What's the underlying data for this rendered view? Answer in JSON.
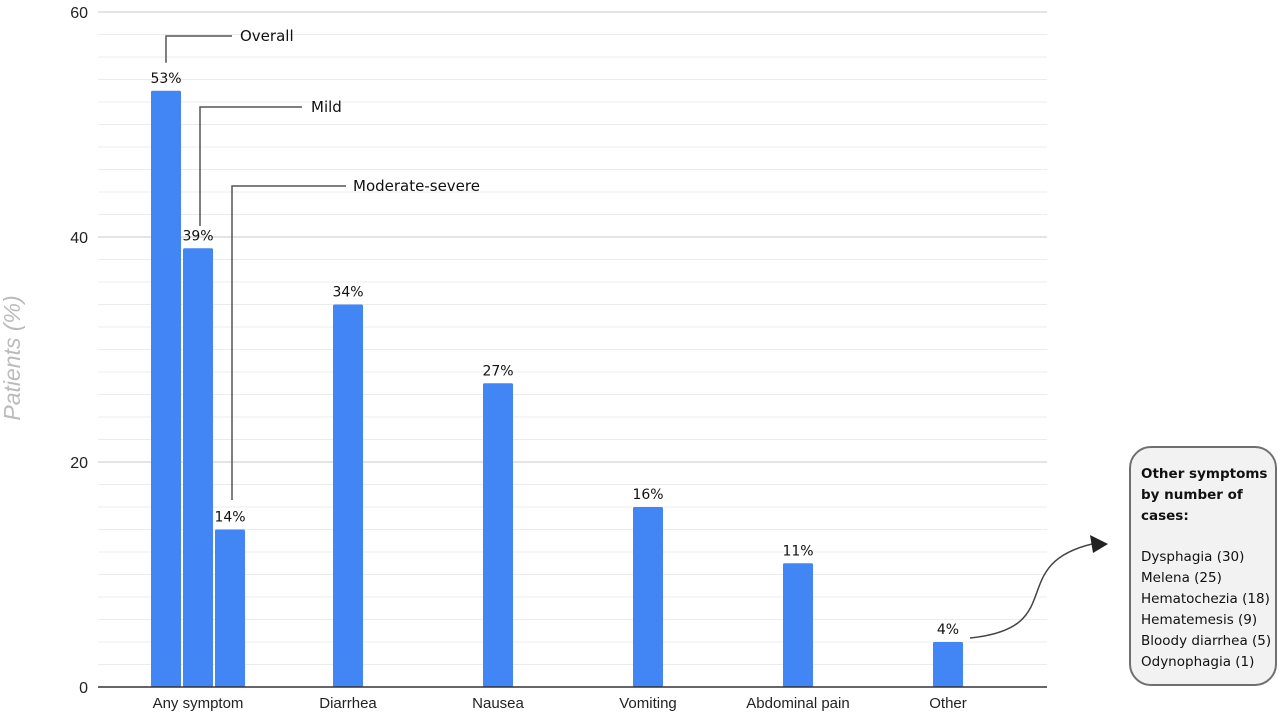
{
  "chart_data": {
    "type": "bar",
    "ylabel": "Patients (%)",
    "ylim": [
      0,
      60
    ],
    "yticks": [
      0,
      20,
      40,
      60
    ],
    "grid": true,
    "categories": [
      "Any symptom",
      "Diarrhea",
      "Nausea",
      "Vomiting",
      "Abdominal pain",
      "Other"
    ],
    "bars": [
      {
        "category": "Any symptom",
        "value": 53,
        "label": "53%",
        "callout": "Overall"
      },
      {
        "category": "Any symptom",
        "value": 39,
        "label": "39%",
        "callout": "Mild"
      },
      {
        "category": "Any symptom",
        "value": 14,
        "label": "14%",
        "callout": "Moderate-severe"
      },
      {
        "category": "Diarrhea",
        "value": 34,
        "label": "34%"
      },
      {
        "category": "Nausea",
        "value": 27,
        "label": "27%"
      },
      {
        "category": "Vomiting",
        "value": 16,
        "label": "16%"
      },
      {
        "category": "Abdominal pain",
        "value": 11,
        "label": "11%"
      },
      {
        "category": "Other",
        "value": 4,
        "label": "4%"
      }
    ],
    "bar_color": "#4285f4"
  },
  "other_box": {
    "title": "Other symptoms by number of cases:",
    "items": [
      "Dysphagia (30)",
      "Melena (25)",
      "Hematochezia (18)",
      "Hematemesis (9)",
      "Bloody diarrhea (5)",
      "Odynophagia (1)"
    ]
  }
}
